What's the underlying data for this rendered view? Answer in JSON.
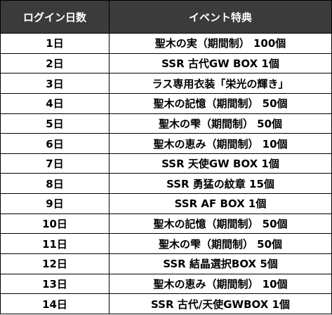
{
  "table": {
    "headers": {
      "day": "ログイン日数",
      "event": "イベント特典"
    },
    "rows": [
      {
        "day": "1日",
        "reward": "聖木の実（期間制） 100個"
      },
      {
        "day": "2日",
        "reward": "SSR 古代GW BOX 1個"
      },
      {
        "day": "3日",
        "reward": "ラス専用衣装「栄光の輝き」"
      },
      {
        "day": "4日",
        "reward": "聖木の記憶（期間制） 50個"
      },
      {
        "day": "5日",
        "reward": "聖木の雫（期間制） 50個"
      },
      {
        "day": "6日",
        "reward": "聖木の恵み（期間制） 10個"
      },
      {
        "day": "7日",
        "reward": "SSR 天使GW BOX 1個"
      },
      {
        "day": "8日",
        "reward": "SSR 勇猛の紋章 15個"
      },
      {
        "day": "9日",
        "reward": "SSR AF BOX 1個"
      },
      {
        "day": "10日",
        "reward": "聖木の記憶（期間制） 50個"
      },
      {
        "day": "11日",
        "reward": "聖木の雫（期間制） 50個"
      },
      {
        "day": "12日",
        "reward": "SSR 結晶選択BOX 5個"
      },
      {
        "day": "13日",
        "reward": "聖木の恵み（期間制） 10個"
      },
      {
        "day": "14日",
        "reward": "SSR 古代/天使GWBOX 1個"
      }
    ]
  }
}
